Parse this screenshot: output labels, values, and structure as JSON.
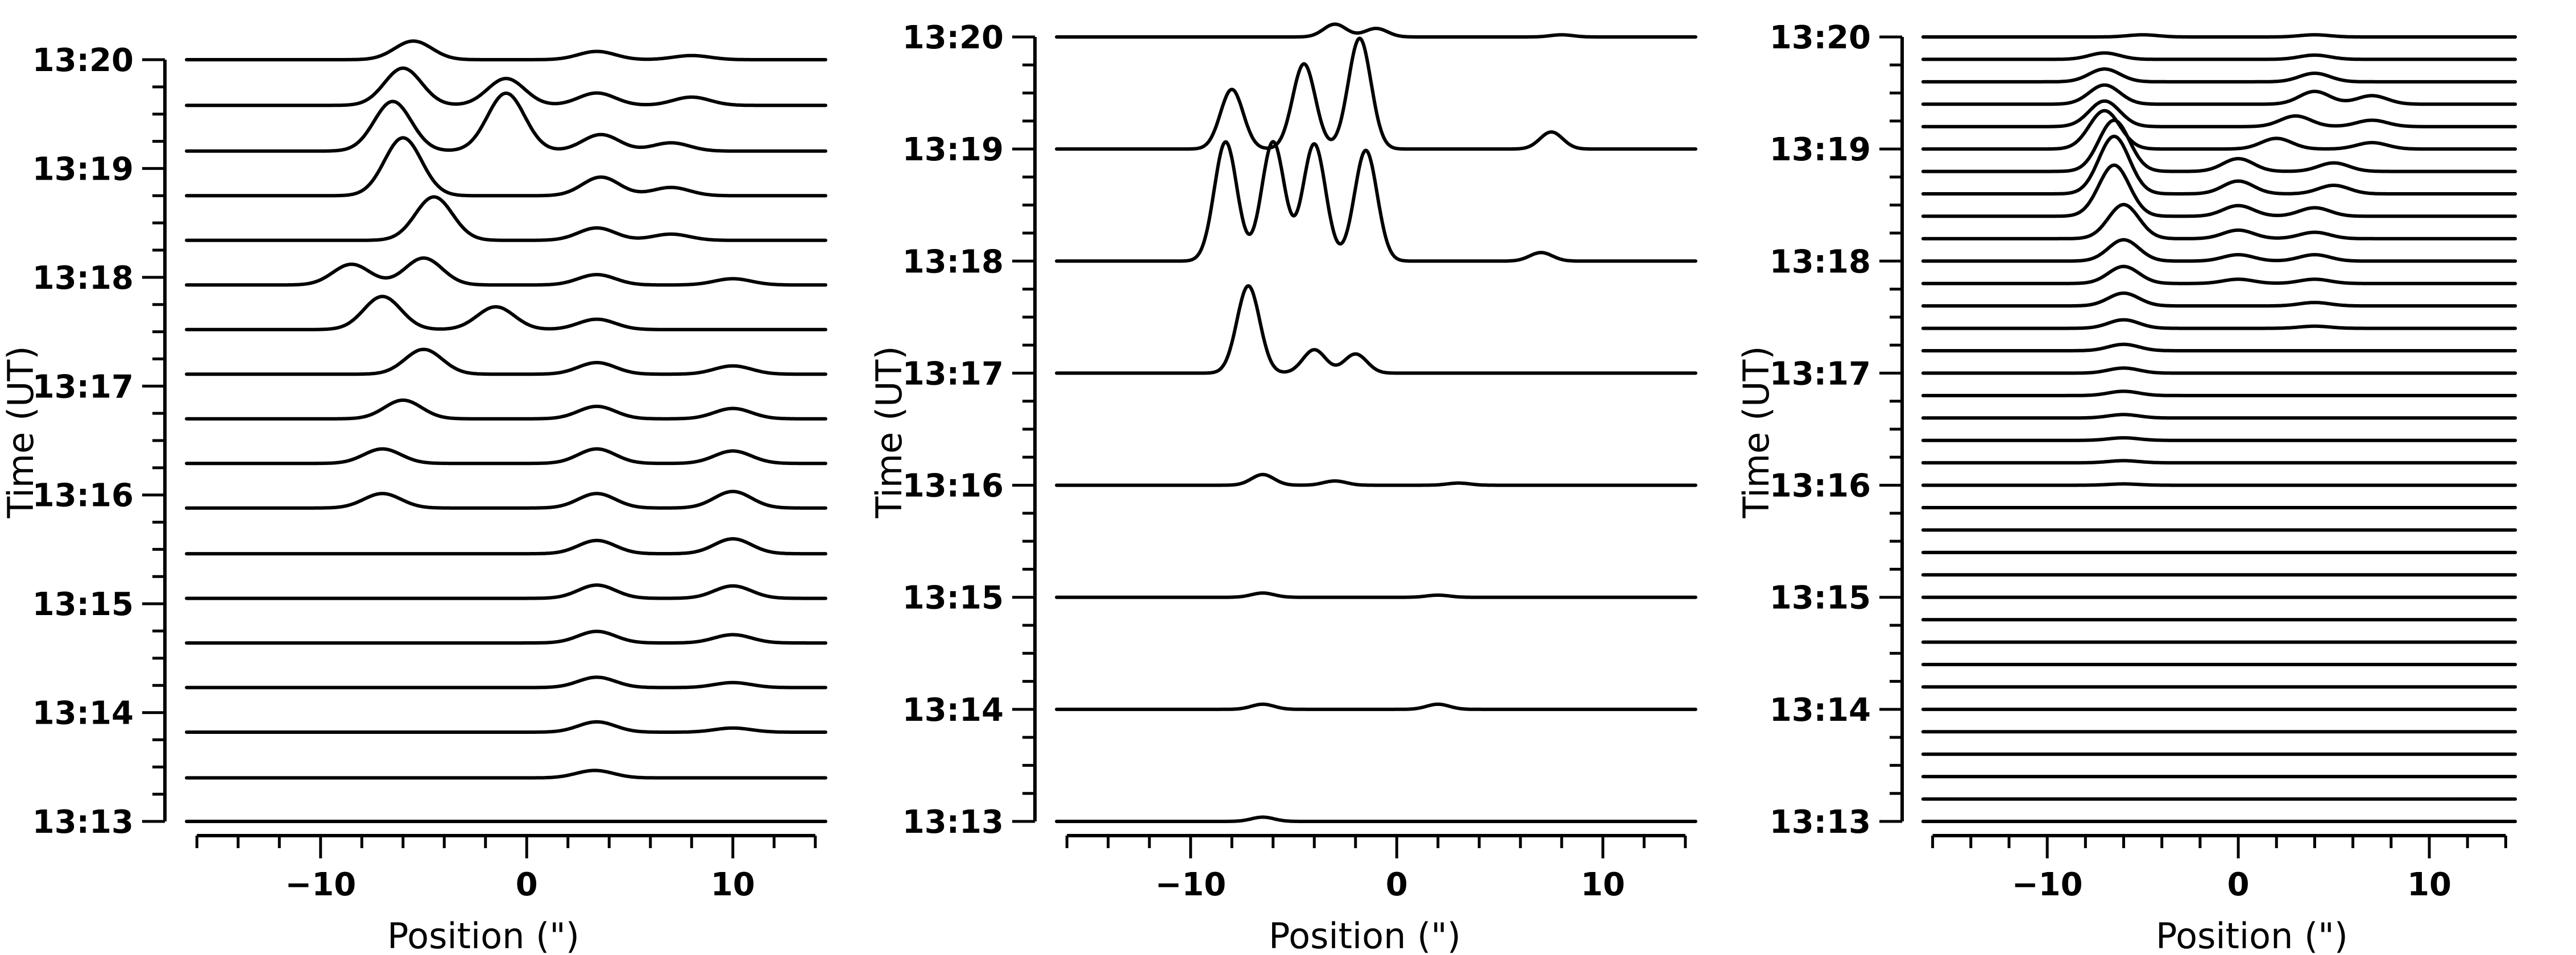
{
  "chart_data": [
    {
      "type": "line",
      "panel": "left",
      "xlabel": "Position (\")",
      "ylabel": "Time (UT)",
      "xlim": [
        -17,
        15
      ],
      "x_ticks": [
        -10,
        0,
        10
      ],
      "x_tick_labels": [
        "−10",
        "0",
        "10"
      ],
      "y_ticks": [
        "13:13",
        "13:14",
        "13:15",
        "13:16",
        "13:17",
        "13:18",
        "13:19",
        "13:20"
      ],
      "ylim_minutes": [
        0,
        7
      ],
      "trace_times_minutes": [
        0,
        0.4,
        0.82,
        1.23,
        1.64,
        2.05,
        2.46,
        2.88,
        3.29,
        3.7,
        4.11,
        4.52,
        4.93,
        5.34,
        5.75,
        6.16,
        6.58,
        7
      ],
      "peaks": [
        [],
        [
          [
            3.3,
            0.18
          ]
        ],
        [
          [
            3.4,
            0.25
          ],
          [
            10,
            0.1
          ]
        ],
        [
          [
            3.4,
            0.25
          ],
          [
            10,
            0.12
          ]
        ],
        [
          [
            3.4,
            0.28
          ],
          [
            10,
            0.2
          ]
        ],
        [
          [
            3.4,
            0.32
          ],
          [
            10,
            0.3
          ]
        ],
        [
          [
            3.4,
            0.32
          ],
          [
            10,
            0.36
          ]
        ],
        [
          [
            -7,
            0.35
          ],
          [
            3.4,
            0.35
          ],
          [
            10,
            0.4
          ]
        ],
        [
          [
            -7,
            0.35
          ],
          [
            3.4,
            0.35
          ],
          [
            10,
            0.3
          ]
        ],
        [
          [
            -6,
            0.45
          ],
          [
            3.4,
            0.3
          ],
          [
            10,
            0.25
          ]
        ],
        [
          [
            -5,
            0.6
          ],
          [
            3.4,
            0.28
          ],
          [
            10,
            0.2
          ]
        ],
        [
          [
            -7,
            0.8
          ],
          [
            -1.5,
            0.55
          ],
          [
            3.4,
            0.25
          ]
        ],
        [
          [
            -8.5,
            0.5
          ],
          [
            -5,
            0.65
          ],
          [
            3.4,
            0.25
          ],
          [
            10,
            0.15
          ]
        ],
        [
          [
            -4.5,
            1.05
          ],
          [
            3.4,
            0.3
          ],
          [
            7,
            0.15
          ]
        ],
        [
          [
            -6,
            1.4
          ],
          [
            3.6,
            0.45
          ],
          [
            7,
            0.2
          ]
        ],
        [
          [
            -6.5,
            1.2
          ],
          [
            -1,
            1.4
          ],
          [
            3.6,
            0.4
          ],
          [
            7,
            0.2
          ]
        ],
        [
          [
            -6,
            0.9
          ],
          [
            -1,
            0.65
          ],
          [
            3.4,
            0.3
          ],
          [
            8,
            0.2
          ]
        ],
        [
          [
            -5.5,
            0.45
          ],
          [
            3.4,
            0.2
          ],
          [
            8,
            0.1
          ]
        ]
      ]
    },
    {
      "type": "line",
      "panel": "middle",
      "xlabel": "Position (\")",
      "ylabel": "Time (UT)",
      "xlim": [
        -17,
        15
      ],
      "x_ticks": [
        -10,
        0,
        10
      ],
      "x_tick_labels": [
        "−10",
        "0",
        "10"
      ],
      "y_ticks": [
        "13:13",
        "13:14",
        "13:15",
        "13:16",
        "13:17",
        "13:18",
        "13:19",
        "13:20"
      ],
      "ylim_minutes": [
        0,
        7
      ],
      "trace_times_minutes": [
        0,
        1,
        2,
        3,
        4,
        5,
        6,
        7
      ],
      "peaks": [
        [
          [
            -6.5,
            0.1
          ]
        ],
        [
          [
            -6.5,
            0.12
          ],
          [
            2,
            0.12
          ]
        ],
        [
          [
            -6.5,
            0.1
          ],
          [
            2,
            0.05
          ]
        ],
        [
          [
            -6.5,
            0.25
          ],
          [
            -3,
            0.1
          ],
          [
            3,
            0.05
          ]
        ],
        [
          [
            -7.2,
            2.05
          ],
          [
            -4,
            0.55
          ],
          [
            -2,
            0.45
          ]
        ],
        [
          [
            -8.3,
            2.8
          ],
          [
            -6,
            2.8
          ],
          [
            -4,
            2.75
          ],
          [
            -1.5,
            2.6
          ],
          [
            7,
            0.2
          ]
        ],
        [
          [
            -8,
            1.4
          ],
          [
            -4.5,
            2.0
          ],
          [
            -1.8,
            2.6
          ],
          [
            7.5,
            0.4
          ]
        ],
        [
          [
            -3,
            0.3
          ],
          [
            -1,
            0.2
          ],
          [
            8,
            0.05
          ]
        ]
      ]
    },
    {
      "type": "line",
      "panel": "right",
      "xlabel": "Position (\")",
      "ylabel": "Time (UT)",
      "xlim": [
        -17,
        15
      ],
      "x_ticks": [
        -10,
        0,
        10
      ],
      "x_tick_labels": [
        "−10",
        "0",
        "10"
      ],
      "y_ticks": [
        "13:13",
        "13:14",
        "13:15",
        "13:16",
        "13:17",
        "13:18",
        "13:19",
        "13:20"
      ],
      "ylim_minutes": [
        0,
        7
      ],
      "trace_count": 36,
      "peaks": [
        [],
        [],
        [],
        [],
        [],
        [],
        [],
        [],
        [],
        [],
        [],
        [],
        [],
        [],
        [],
        [
          [
            -6,
            0.03
          ]
        ],
        [
          [
            -6,
            0.05
          ]
        ],
        [
          [
            -6,
            0.06
          ]
        ],
        [
          [
            -6,
            0.08
          ]
        ],
        [
          [
            -6,
            0.1
          ]
        ],
        [
          [
            -6,
            0.12
          ]
        ],
        [
          [
            -6,
            0.15
          ]
        ],
        [
          [
            -6,
            0.2
          ],
          [
            4,
            0.05
          ]
        ],
        [
          [
            -6,
            0.3
          ],
          [
            4,
            0.08
          ]
        ],
        [
          [
            -6,
            0.4
          ],
          [
            0,
            0.1
          ],
          [
            4,
            0.1
          ]
        ],
        [
          [
            -6,
            0.5
          ],
          [
            0,
            0.15
          ],
          [
            4,
            0.15
          ]
        ],
        [
          [
            -6,
            0.8
          ],
          [
            0,
            0.2
          ],
          [
            4,
            0.15
          ]
        ],
        [
          [
            -6.5,
            1.2
          ],
          [
            0,
            0.25
          ],
          [
            4,
            0.2
          ]
        ],
        [
          [
            -6.5,
            1.35
          ],
          [
            0,
            0.3
          ],
          [
            5,
            0.2
          ]
        ],
        [
          [
            -6.5,
            1.2
          ],
          [
            0,
            0.3
          ],
          [
            5,
            0.2
          ]
        ],
        [
          [
            -7,
            0.9
          ],
          [
            2,
            0.25
          ],
          [
            7,
            0.15
          ]
        ],
        [
          [
            -7,
            0.6
          ],
          [
            3,
            0.25
          ],
          [
            7,
            0.15
          ]
        ],
        [
          [
            -7,
            0.45
          ],
          [
            4,
            0.3
          ],
          [
            7,
            0.2
          ]
        ],
        [
          [
            -7,
            0.3
          ],
          [
            4,
            0.2
          ]
        ],
        [
          [
            -7,
            0.15
          ],
          [
            4,
            0.1
          ]
        ],
        [
          [
            -5,
            0.05
          ],
          [
            4,
            0.05
          ]
        ]
      ]
    }
  ]
}
